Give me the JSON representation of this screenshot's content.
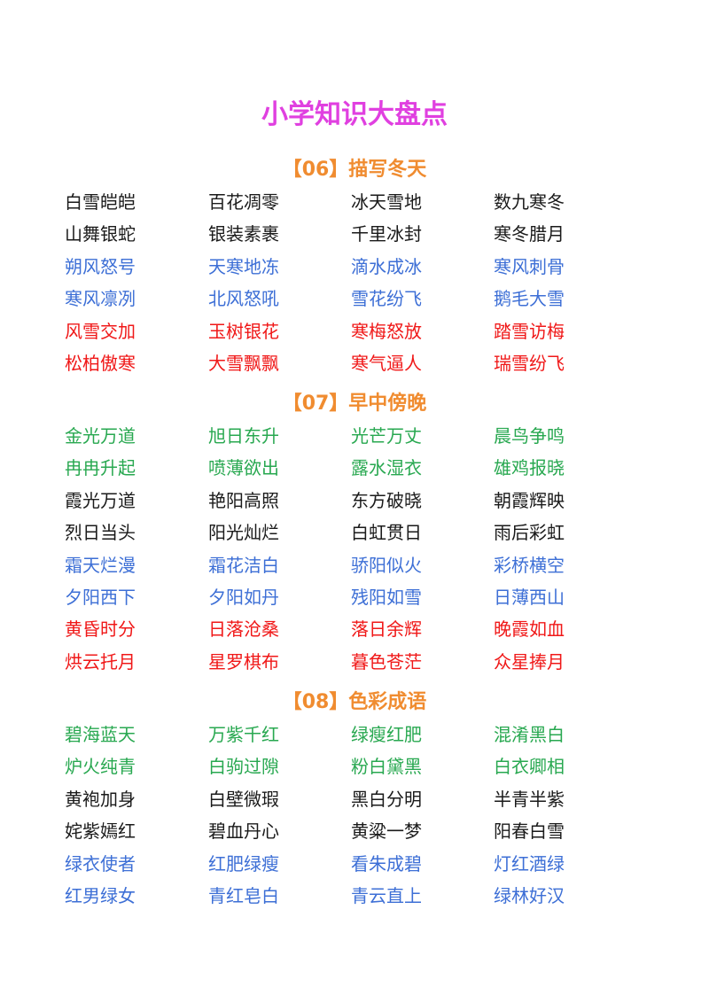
{
  "title": "小学知识大盘点",
  "colors": {
    "title": "#e040e0",
    "heading": "#f08c30",
    "black": "#1a1a1a",
    "blue": "#3d6fd6",
    "red": "#f01818",
    "green": "#28a850"
  },
  "sections": [
    {
      "heading": "【06】描写冬天",
      "rows": [
        {
          "color": "black",
          "items": [
            "白雪皑皑",
            "百花凋零",
            "冰天雪地",
            "数九寒冬"
          ]
        },
        {
          "color": "black",
          "items": [
            "山舞银蛇",
            "银装素裹",
            "千里冰封",
            "寒冬腊月"
          ]
        },
        {
          "color": "blue",
          "items": [
            "朔风怒号",
            "天寒地冻",
            "滴水成冰",
            "寒风刺骨"
          ]
        },
        {
          "color": "blue",
          "items": [
            "寒风凛冽",
            "北风怒吼",
            "雪花纷飞",
            "鹅毛大雪"
          ]
        },
        {
          "color": "red",
          "items": [
            "风雪交加",
            "玉树银花",
            "寒梅怒放",
            "踏雪访梅"
          ]
        },
        {
          "color": "red",
          "items": [
            "松柏傲寒",
            "大雪飘飘",
            "寒气逼人",
            "瑞雪纷飞"
          ]
        }
      ]
    },
    {
      "heading": "【07】早中傍晚",
      "rows": [
        {
          "color": "green",
          "items": [
            "金光万道",
            "旭日东升",
            "光芒万丈",
            "晨鸟争鸣"
          ]
        },
        {
          "color": "green",
          "items": [
            "冉冉升起",
            "喷薄欲出",
            "露水湿衣",
            "雄鸡报晓"
          ]
        },
        {
          "color": "black",
          "items": [
            "霞光万道",
            "艳阳高照",
            "东方破晓",
            "朝霞辉映"
          ]
        },
        {
          "color": "black",
          "items": [
            "烈日当头",
            "阳光灿烂",
            "白虹贯日",
            "雨后彩虹"
          ]
        },
        {
          "color": "blue",
          "items": [
            "霜天烂漫",
            "霜花洁白",
            "骄阳似火",
            "彩桥横空"
          ]
        },
        {
          "color": "blue",
          "items": [
            "夕阳西下",
            "夕阳如丹",
            "残阳如雪",
            "日薄西山"
          ]
        },
        {
          "color": "red",
          "items": [
            "黄昏时分",
            "日落沧桑",
            "落日余辉",
            "晚霞如血"
          ]
        },
        {
          "color": "red",
          "items": [
            "烘云托月",
            "星罗棋布",
            "暮色苍茫",
            "众星捧月"
          ]
        }
      ]
    },
    {
      "heading": "【08】色彩成语",
      "rows": [
        {
          "color": "green",
          "items": [
            "碧海蓝天",
            "万紫千红",
            "绿瘦红肥",
            "混淆黑白"
          ]
        },
        {
          "color": "green",
          "items": [
            "炉火纯青",
            "白驹过隙",
            "粉白黛黑",
            "白衣卿相"
          ]
        },
        {
          "color": "black",
          "items": [
            "黄袍加身",
            "白壁微瑕",
            "黑白分明",
            "半青半紫"
          ]
        },
        {
          "color": "black",
          "items": [
            "姹紫嫣红",
            "碧血丹心",
            "黄粱一梦",
            "阳春白雪"
          ]
        },
        {
          "color": "blue",
          "items": [
            "绿衣使者",
            "红肥绿瘦",
            "看朱成碧",
            "灯红酒绿"
          ]
        },
        {
          "color": "blue",
          "items": [
            "红男绿女",
            "青红皂白",
            "青云直上",
            "绿林好汉"
          ]
        }
      ]
    }
  ]
}
